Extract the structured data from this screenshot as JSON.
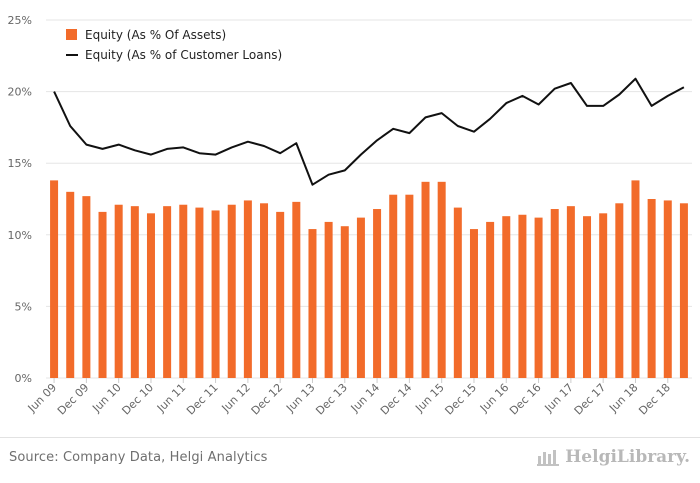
{
  "source": "Source: Company Data, Helgi Analytics",
  "logo": {
    "icon": "helgi-library-logo-icon",
    "text": "HelgiLibrary."
  },
  "colors": {
    "bar": "#f26b2a",
    "line": "#111111",
    "grid": "#e5e5e5",
    "text": "#666666"
  },
  "chart_data": {
    "type": "bar",
    "ylim": [
      0,
      25
    ],
    "yticks": [
      "0%",
      "5%",
      "10%",
      "15%",
      "20%",
      "25%"
    ],
    "ytick_values": [
      0,
      5,
      10,
      15,
      20,
      25
    ],
    "grid": true,
    "legend_position": "top-left",
    "xtick_labels": [
      "Jun 09",
      "Dec 09",
      "Jun 10",
      "Dec 10",
      "Jun 11",
      "Dec 11",
      "Jun 12",
      "Dec 12",
      "Jun 13",
      "Dec 13",
      "Jun 14",
      "Dec 14",
      "Jun 15",
      "Dec 15",
      "Jun 16",
      "Dec 16",
      "Jun 17",
      "Dec 17",
      "Jun 18",
      "Dec 18"
    ],
    "categories": [
      "Jun 09",
      "Sep 09",
      "Dec 09",
      "Mar 10",
      "Jun 10",
      "Sep 10",
      "Dec 10",
      "Mar 11",
      "Jun 11",
      "Sep 11",
      "Dec 11",
      "Mar 12",
      "Jun 12",
      "Sep 12",
      "Dec 12",
      "Mar 13",
      "Jun 13",
      "Sep 13",
      "Dec 13",
      "Mar 14",
      "Jun 14",
      "Sep 14",
      "Dec 14",
      "Mar 15",
      "Jun 15",
      "Sep 15",
      "Dec 15",
      "Mar 16",
      "Jun 16",
      "Sep 16",
      "Dec 16",
      "Mar 17",
      "Jun 17",
      "Sep 17",
      "Dec 17",
      "Mar 18",
      "Jun 18",
      "Sep 18",
      "Dec 18",
      "Mar 19"
    ],
    "series": [
      {
        "name": "Equity (As % Of Assets)",
        "type": "bar",
        "values": [
          13.8,
          13.0,
          12.7,
          11.6,
          12.1,
          12.0,
          11.5,
          12.0,
          12.1,
          11.9,
          11.7,
          12.1,
          12.4,
          12.2,
          11.6,
          12.3,
          10.4,
          10.9,
          10.6,
          11.2,
          11.8,
          12.8,
          12.8,
          13.7,
          13.7,
          11.9,
          10.4,
          10.9,
          11.3,
          11.4,
          11.2,
          11.8,
          12.0,
          11.3,
          11.5,
          12.2,
          13.8,
          12.5,
          12.4,
          12.2
        ]
      },
      {
        "name": "Equity (As % of Customer Loans)",
        "type": "line",
        "values": [
          20.0,
          17.6,
          16.3,
          16.0,
          16.3,
          15.9,
          15.6,
          16.0,
          16.1,
          15.7,
          15.6,
          16.1,
          16.5,
          16.2,
          15.7,
          16.4,
          13.5,
          14.2,
          14.5,
          15.6,
          16.6,
          17.4,
          17.1,
          18.2,
          18.5,
          17.6,
          17.2,
          18.1,
          19.2,
          19.7,
          19.1,
          20.2,
          20.6,
          19.0,
          19.0,
          19.8,
          20.9,
          19.0,
          19.7,
          20.3
        ]
      }
    ]
  }
}
